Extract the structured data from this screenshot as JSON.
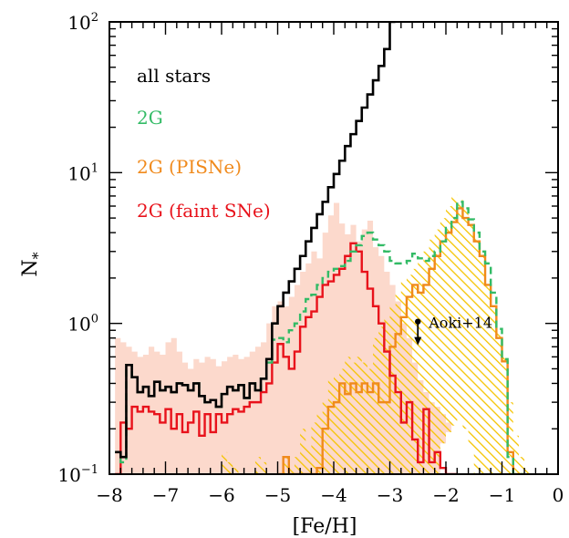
{
  "chart_data": {
    "type": "line",
    "xlabel": "[Fe/H]",
    "ylabel": "N",
    "ylabel_sub": "*",
    "xlim": [
      -8,
      0
    ],
    "ylim": [
      0.1,
      100
    ],
    "yscale": "log",
    "x_ticks": [
      {
        "value": -8,
        "label": "−8"
      },
      {
        "value": -7,
        "label": "−7"
      },
      {
        "value": -6,
        "label": "−6"
      },
      {
        "value": -5,
        "label": "−5"
      },
      {
        "value": -4,
        "label": "−4"
      },
      {
        "value": -3,
        "label": "−3"
      },
      {
        "value": -2,
        "label": "−2"
      },
      {
        "value": -1,
        "label": "−1"
      },
      {
        "value": 0,
        "label": "0"
      }
    ],
    "y_ticks": [
      {
        "value": 0.1,
        "base": "10",
        "exp": "−1"
      },
      {
        "value": 1,
        "base": "10",
        "exp": "0"
      },
      {
        "value": 10,
        "base": "10",
        "exp": "1"
      },
      {
        "value": 100,
        "base": "10",
        "exp": "2"
      }
    ],
    "legend": [
      {
        "label": "all stars",
        "color": "#000000"
      },
      {
        "label": "2G",
        "color": "#33bb66"
      },
      {
        "label": "2G (PISNe)",
        "color": "#f08a1c"
      },
      {
        "label": "2G (faint SNe)",
        "color": "#e8121b"
      }
    ],
    "annotation": {
      "label": "Aoki+14",
      "x": -2.5,
      "y": 1.0,
      "upper_limit": true
    },
    "colors": {
      "all_stars": "#000000",
      "g2": "#33bb66",
      "pisne": "#f08a1c",
      "faint": "#e8121b",
      "shade_pink": "#fcd9cc",
      "hatch_yellow": "#f5c400"
    },
    "series": [
      {
        "name": "all stars",
        "style": "step",
        "x": [
          -7.9,
          -7.8,
          -7.7,
          -7.6,
          -7.5,
          -7.4,
          -7.3,
          -7.2,
          -7.1,
          -7.0,
          -6.9,
          -6.8,
          -6.7,
          -6.6,
          -6.5,
          -6.4,
          -6.3,
          -6.2,
          -6.1,
          -6.0,
          -5.9,
          -5.8,
          -5.7,
          -5.6,
          -5.5,
          -5.4,
          -5.3,
          -5.2,
          -5.1,
          -5.0,
          -4.9,
          -4.8,
          -4.7,
          -4.6,
          -4.5,
          -4.4,
          -4.3,
          -4.2,
          -4.1,
          -4.0,
          -3.9,
          -3.8,
          -3.7,
          -3.6,
          -3.5,
          -3.4,
          -3.3,
          -3.2,
          -3.1,
          -3.0
        ],
        "y": [
          0.14,
          0.13,
          0.53,
          0.44,
          0.35,
          0.38,
          0.33,
          0.41,
          0.36,
          0.38,
          0.35,
          0.4,
          0.39,
          0.36,
          0.4,
          0.33,
          0.3,
          0.31,
          0.28,
          0.34,
          0.38,
          0.36,
          0.39,
          0.32,
          0.4,
          0.36,
          0.43,
          0.58,
          1.0,
          1.3,
          1.6,
          1.9,
          2.3,
          2.8,
          3.5,
          4.3,
          5.3,
          6.4,
          8.0,
          9.8,
          12,
          15,
          18,
          22,
          27,
          33,
          41,
          51,
          66,
          100
        ]
      },
      {
        "name": "2G",
        "style": "step-dashed",
        "x": [
          -7.9,
          -7.8,
          -7.7,
          -7.6,
          -7.5,
          -7.4,
          -7.3,
          -7.2,
          -7.1,
          -7.0,
          -6.9,
          -6.8,
          -6.7,
          -6.6,
          -6.5,
          -6.4,
          -6.3,
          -6.2,
          -6.1,
          -6.0,
          -5.9,
          -5.8,
          -5.7,
          -5.6,
          -5.5,
          -5.4,
          -5.3,
          -5.2,
          -5.1,
          -5.0,
          -4.9,
          -4.8,
          -4.7,
          -4.6,
          -4.5,
          -4.4,
          -4.3,
          -4.2,
          -4.1,
          -4.0,
          -3.9,
          -3.8,
          -3.7,
          -3.6,
          -3.5,
          -3.4,
          -3.3,
          -3.2,
          -3.1,
          -3.0,
          -2.9,
          -2.8,
          -2.7,
          -2.6,
          -2.5,
          -2.4,
          -2.3,
          -2.2,
          -2.1,
          -2.0,
          -1.9,
          -1.8,
          -1.7,
          -1.6,
          -1.5,
          -1.4,
          -1.3,
          -1.2,
          -1.1,
          -1.0,
          -0.9,
          -0.8,
          -0.7
        ],
        "y": [
          0.14,
          0.12,
          0.53,
          0.44,
          0.35,
          0.38,
          0.33,
          0.41,
          0.36,
          0.38,
          0.35,
          0.4,
          0.39,
          0.36,
          0.4,
          0.33,
          0.3,
          0.31,
          0.28,
          0.34,
          0.38,
          0.36,
          0.39,
          0.32,
          0.4,
          0.36,
          0.43,
          0.55,
          0.78,
          0.8,
          0.75,
          0.9,
          1.0,
          1.2,
          1.45,
          1.55,
          1.8,
          2.0,
          2.2,
          2.3,
          2.4,
          2.6,
          3.0,
          3.3,
          3.8,
          4.0,
          3.6,
          3.3,
          3.0,
          2.6,
          2.5,
          2.5,
          2.6,
          2.9,
          2.7,
          2.6,
          2.8,
          3.0,
          3.5,
          4.3,
          5.0,
          6.4,
          5.8,
          4.9,
          4.0,
          3.0,
          2.5,
          1.6,
          0.92,
          0.58,
          0.13,
          0.1,
          0.1
        ]
      },
      {
        "name": "2G (PISNe)",
        "style": "step",
        "x": [
          -5.0,
          -4.9,
          -4.8,
          -4.7,
          -4.6,
          -4.5,
          -4.4,
          -4.3,
          -4.2,
          -4.1,
          -4.0,
          -3.9,
          -3.8,
          -3.7,
          -3.6,
          -3.5,
          -3.4,
          -3.3,
          -3.2,
          -3.1,
          -3.0,
          -2.9,
          -2.8,
          -2.7,
          -2.6,
          -2.5,
          -2.4,
          -2.3,
          -2.2,
          -2.1,
          -2.0,
          -1.9,
          -1.8,
          -1.7,
          -1.6,
          -1.5,
          -1.4,
          -1.3,
          -1.2,
          -1.1,
          -1.0,
          -0.9,
          -0.8,
          -0.7
        ],
        "y": [
          0.1,
          0.13,
          0.1,
          0.1,
          0.1,
          0.1,
          0.1,
          0.11,
          0.2,
          0.28,
          0.3,
          0.4,
          0.34,
          0.4,
          0.35,
          0.4,
          0.35,
          0.4,
          0.3,
          0.3,
          0.7,
          0.85,
          1.1,
          1.5,
          1.8,
          1.6,
          1.8,
          2.3,
          2.8,
          3.5,
          4.0,
          4.7,
          5.8,
          5.0,
          4.5,
          3.5,
          2.8,
          1.8,
          1.3,
          0.8,
          0.56,
          0.14,
          0.1,
          0.1
        ]
      },
      {
        "name": "2G (faint SNe)",
        "style": "step",
        "x": [
          -7.9,
          -7.8,
          -7.7,
          -7.6,
          -7.5,
          -7.4,
          -7.3,
          -7.2,
          -7.1,
          -7.0,
          -6.9,
          -6.8,
          -6.7,
          -6.6,
          -6.5,
          -6.4,
          -6.3,
          -6.2,
          -6.1,
          -6.0,
          -5.9,
          -5.8,
          -5.7,
          -5.6,
          -5.5,
          -5.4,
          -5.3,
          -5.2,
          -5.1,
          -5.0,
          -4.9,
          -4.8,
          -4.7,
          -4.6,
          -4.5,
          -4.4,
          -4.3,
          -4.2,
          -4.1,
          -4.0,
          -3.9,
          -3.8,
          -3.7,
          -3.6,
          -3.5,
          -3.4,
          -3.3,
          -3.2,
          -3.1,
          -3.0,
          -2.9,
          -2.8,
          -2.7,
          -2.6,
          -2.5,
          -2.4,
          -2.3,
          -2.2,
          -2.1,
          -2.0,
          -1.9
        ],
        "y": [
          0.1,
          0.22,
          0.2,
          0.28,
          0.26,
          0.28,
          0.26,
          0.25,
          0.22,
          0.27,
          0.2,
          0.25,
          0.19,
          0.22,
          0.26,
          0.18,
          0.25,
          0.19,
          0.25,
          0.22,
          0.25,
          0.27,
          0.26,
          0.28,
          0.3,
          0.3,
          0.35,
          0.4,
          0.55,
          0.73,
          0.6,
          0.5,
          0.65,
          0.95,
          1.1,
          1.2,
          1.5,
          1.8,
          1.9,
          2.1,
          2.3,
          2.8,
          3.4,
          3.0,
          2.2,
          1.7,
          1.3,
          1.0,
          0.65,
          0.45,
          0.35,
          0.22,
          0.3,
          0.17,
          0.12,
          0.27,
          0.12,
          0.14,
          0.11,
          0.1,
          0.1
        ]
      },
      {
        "name": "",
        "style": "shaded",
        "x": [
          -7.9,
          -7.8,
          -7.7,
          -7.6,
          -7.5,
          -7.4,
          -7.3,
          -7.2,
          -7.1,
          -7.0,
          -6.9,
          -6.8,
          -6.7,
          -6.6,
          -6.5,
          -6.4,
          -6.3,
          -6.2,
          -6.1,
          -6.0,
          -5.9,
          -5.8,
          -5.7,
          -5.6,
          -5.5,
          -5.4,
          -5.3,
          -5.2,
          -5.1,
          -5.0,
          -4.9,
          -4.8,
          -4.7,
          -4.6,
          -4.5,
          -4.4,
          -4.3,
          -4.2,
          -4.1,
          -4.0,
          -3.9,
          -3.8,
          -3.7,
          -3.6,
          -3.5,
          -3.4,
          -3.3,
          -3.2,
          -3.1,
          -3.0,
          -2.9,
          -2.8,
          -2.7,
          -2.6,
          -2.5,
          -2.4,
          -2.3,
          -2.2,
          -2.1,
          -2.0,
          -1.9
        ],
        "y": [
          0.8,
          0.75,
          0.7,
          0.65,
          0.6,
          0.62,
          0.7,
          0.65,
          0.62,
          0.75,
          0.8,
          0.65,
          0.55,
          0.5,
          0.58,
          0.55,
          0.6,
          0.58,
          0.52,
          0.56,
          0.6,
          0.62,
          0.58,
          0.6,
          0.65,
          0.7,
          0.75,
          1.0,
          1.3,
          1.4,
          1.3,
          1.5,
          1.8,
          2.2,
          2.5,
          3.0,
          2.7,
          4.0,
          5.2,
          6.3,
          4.6,
          3.9,
          4.5,
          3.5,
          4.2,
          4.8,
          3.2,
          2.8,
          2.2,
          1.8,
          1.4,
          1.0,
          0.8,
          0.55,
          0.42,
          0.35,
          0.3,
          0.28,
          0.25,
          0.22,
          0.15
        ]
      },
      {
        "name": "",
        "style": "hatched",
        "x": [
          -6.0,
          -5.9,
          -5.8,
          -5.7,
          -5.6,
          -5.5,
          -5.4,
          -5.3,
          -5.2,
          -5.1,
          -5.0,
          -4.9,
          -4.8,
          -4.7,
          -4.6,
          -4.5,
          -4.4,
          -4.3,
          -4.2,
          -4.1,
          -4.0,
          -3.9,
          -3.8,
          -3.7,
          -3.6,
          -3.5,
          -3.4,
          -3.3,
          -3.2,
          -3.1,
          -3.0,
          -2.9,
          -2.8,
          -2.7,
          -2.6,
          -2.5,
          -2.4,
          -2.3,
          -2.2,
          -2.1,
          -2.0,
          -1.9,
          -1.8,
          -1.7,
          -1.6,
          -1.5,
          -1.4,
          -1.3,
          -1.2,
          -1.1,
          -1.0,
          -0.9,
          -0.8,
          -0.7,
          -0.6,
          -0.5
        ],
        "y": [
          0.14,
          0.12,
          0.11,
          0.1,
          0.1,
          0.1,
          0.13,
          0.12,
          0.1,
          0.1,
          0.1,
          0.13,
          0.11,
          0.13,
          0.2,
          0.15,
          0.22,
          0.25,
          0.3,
          0.42,
          0.45,
          0.5,
          0.6,
          0.55,
          0.6,
          0.55,
          0.5,
          0.8,
          0.95,
          1.1,
          1.3,
          1.6,
          1.9,
          2.1,
          2.3,
          2.6,
          3.0,
          3.6,
          4.2,
          5.0,
          6.0,
          7.1,
          6.6,
          5.7,
          4.8,
          3.8,
          2.8,
          1.9,
          1.3,
          0.9,
          0.6,
          0.3,
          0.18,
          0.13,
          0.11,
          0.1
        ],
        "hole_x": [
          -2.2,
          -2.1,
          -2.0,
          -1.9,
          -1.8,
          -1.7,
          -1.6,
          -1.5
        ],
        "hole_top": [
          0.1,
          0.16,
          0.19,
          0.21,
          0.23,
          0.2,
          0.15,
          0.1
        ]
      }
    ]
  }
}
